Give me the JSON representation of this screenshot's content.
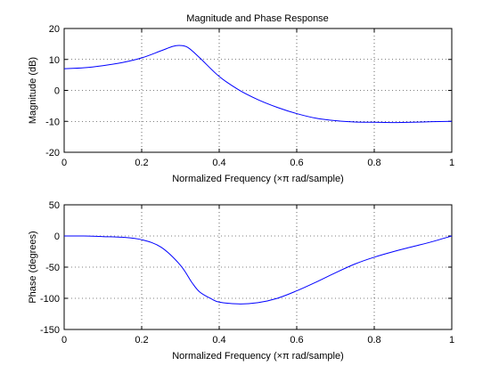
{
  "figure": {
    "title": "Magnitude and Phase Response"
  },
  "chart_data": [
    {
      "type": "line",
      "title": "Magnitude and Phase Response",
      "xlabel": "Normalized Frequency  (×π rad/sample)",
      "ylabel": "Magnitude (dB)",
      "xlim": [
        0,
        1
      ],
      "ylim": [
        -20,
        20
      ],
      "xticks": [
        0,
        0.2,
        0.4,
        0.6,
        0.8,
        1
      ],
      "xtick_labels": [
        "0",
        "0.2",
        "0.4",
        "0.6",
        "0.8",
        "1"
      ],
      "yticks": [
        -20,
        -10,
        0,
        10,
        20
      ],
      "ytick_labels": [
        "-20",
        "-10",
        "0",
        "10",
        "20"
      ],
      "grid": true,
      "color": "#0000ff",
      "series": [
        {
          "x": [
            0,
            0.05,
            0.1,
            0.15,
            0.2,
            0.25,
            0.28,
            0.3,
            0.32,
            0.35,
            0.4,
            0.45,
            0.5,
            0.55,
            0.6,
            0.65,
            0.7,
            0.75,
            0.8,
            0.85,
            0.9,
            0.95,
            1
          ],
          "values": [
            7.0,
            7.3,
            8.0,
            9.0,
            10.5,
            12.8,
            14.2,
            14.5,
            13.8,
            10.5,
            4.5,
            0.2,
            -3.0,
            -5.5,
            -7.5,
            -9.0,
            -9.8,
            -10.2,
            -10.3,
            -10.4,
            -10.3,
            -10.1,
            -10.0
          ]
        }
      ]
    },
    {
      "type": "line",
      "xlabel": "Normalized Frequency  (×π rad/sample)",
      "ylabel": "Phase (degrees)",
      "xlim": [
        0,
        1
      ],
      "ylim": [
        -150,
        50
      ],
      "xticks": [
        0,
        0.2,
        0.4,
        0.6,
        0.8,
        1
      ],
      "xtick_labels": [
        "0",
        "0.2",
        "0.4",
        "0.6",
        "0.8",
        "1"
      ],
      "yticks": [
        -150,
        -100,
        -50,
        0,
        50
      ],
      "ytick_labels": [
        "-150",
        "-100",
        "-50",
        "0",
        "50"
      ],
      "grid": true,
      "color": "#0000ff",
      "series": [
        {
          "x": [
            0,
            0.05,
            0.1,
            0.15,
            0.2,
            0.25,
            0.3,
            0.33,
            0.35,
            0.38,
            0.4,
            0.45,
            0.5,
            0.55,
            0.6,
            0.65,
            0.7,
            0.75,
            0.8,
            0.85,
            0.9,
            0.95,
            1
          ],
          "values": [
            0,
            0,
            -1,
            -2,
            -6,
            -18,
            -47,
            -75,
            -90,
            -101,
            -106,
            -109,
            -107,
            -100,
            -88,
            -74,
            -59,
            -45,
            -34,
            -25,
            -17,
            -9,
            0
          ]
        }
      ]
    }
  ]
}
